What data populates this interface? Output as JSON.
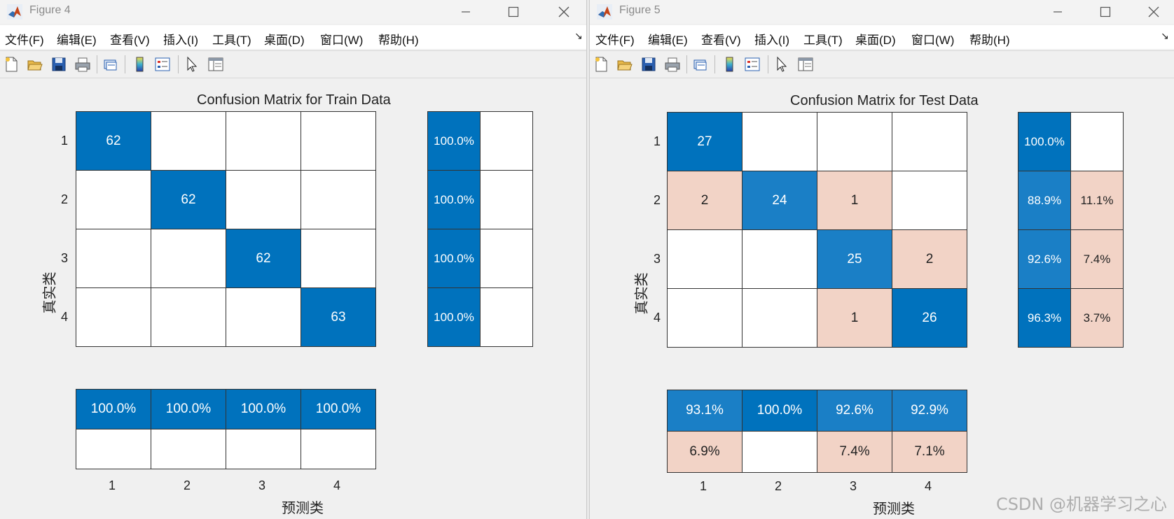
{
  "colors": {
    "diag_blue": "#0072bd",
    "diag_blue_light": "#1a7fc6",
    "mis_pink": "#f2d3c6",
    "empty": "#ffffff"
  },
  "left_window": {
    "title": "Figure 4",
    "menu": [
      "文件(F)",
      "编辑(E)",
      "查看(V)",
      "插入(I)",
      "工具(T)",
      "桌面(D)",
      "窗口(W)",
      "帮助(H)"
    ],
    "menu_arrow": "↘",
    "plot_title": "Confusion Matrix for Train Data",
    "xlabel": "预测类",
    "ylabel": "真实类",
    "ticks": [
      "1",
      "2",
      "3",
      "4"
    ]
  },
  "right_window": {
    "title": "Figure 5",
    "menu": [
      "文件(F)",
      "编辑(E)",
      "查看(V)",
      "插入(I)",
      "工具(T)",
      "桌面(D)",
      "窗口(W)",
      "帮助(H)"
    ],
    "menu_arrow": "↘",
    "plot_title": "Confusion Matrix for Test Data",
    "xlabel": "预测类",
    "ylabel": "真实类",
    "ticks": [
      "1",
      "2",
      "3",
      "4"
    ]
  },
  "watermark": "CSDN @机器学习之心",
  "chart_data": [
    {
      "type": "table",
      "title": "Confusion Matrix for Train Data",
      "xlabel": "预测类",
      "ylabel": "真实类",
      "classes": [
        "1",
        "2",
        "3",
        "4"
      ],
      "matrix": [
        [
          62,
          null,
          null,
          null
        ],
        [
          null,
          62,
          null,
          null
        ],
        [
          null,
          null,
          62,
          null
        ],
        [
          null,
          null,
          null,
          63
        ]
      ],
      "row_summary": [
        [
          "100.0%",
          ""
        ],
        [
          "100.0%",
          ""
        ],
        [
          "100.0%",
          ""
        ],
        [
          "100.0%",
          ""
        ]
      ],
      "col_summary": [
        [
          "100.0%",
          "100.0%",
          "100.0%",
          "100.0%"
        ],
        [
          "",
          "",
          "",
          ""
        ]
      ]
    },
    {
      "type": "table",
      "title": "Confusion Matrix for Test Data",
      "xlabel": "预测类",
      "ylabel": "真实类",
      "classes": [
        "1",
        "2",
        "3",
        "4"
      ],
      "matrix": [
        [
          27,
          null,
          null,
          null
        ],
        [
          2,
          24,
          1,
          null
        ],
        [
          null,
          null,
          25,
          2
        ],
        [
          null,
          null,
          1,
          26
        ]
      ],
      "row_summary": [
        [
          "100.0%",
          ""
        ],
        [
          "88.9%",
          "11.1%"
        ],
        [
          "92.6%",
          "7.4%"
        ],
        [
          "96.3%",
          "3.7%"
        ]
      ],
      "col_summary": [
        [
          "93.1%",
          "100.0%",
          "92.6%",
          "92.9%"
        ],
        [
          "6.9%",
          "",
          "7.4%",
          "7.1%"
        ]
      ]
    }
  ]
}
